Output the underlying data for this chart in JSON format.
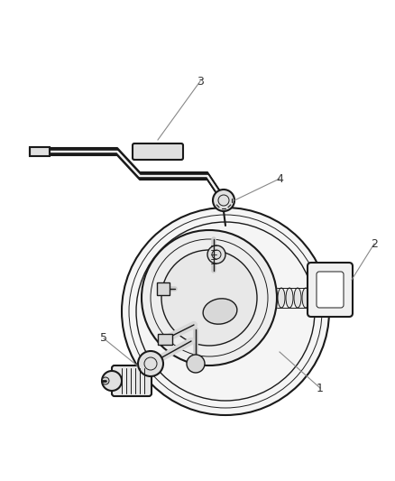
{
  "background_color": "#ffffff",
  "line_color": "#1a1a1a",
  "label_color": "#333333",
  "fig_width": 4.38,
  "fig_height": 5.33,
  "dpi": 100,
  "label_fontsize": 9,
  "lw_hose": 2.2,
  "lw_body": 1.5,
  "lw_detail": 1.0,
  "lw_thin": 0.7
}
